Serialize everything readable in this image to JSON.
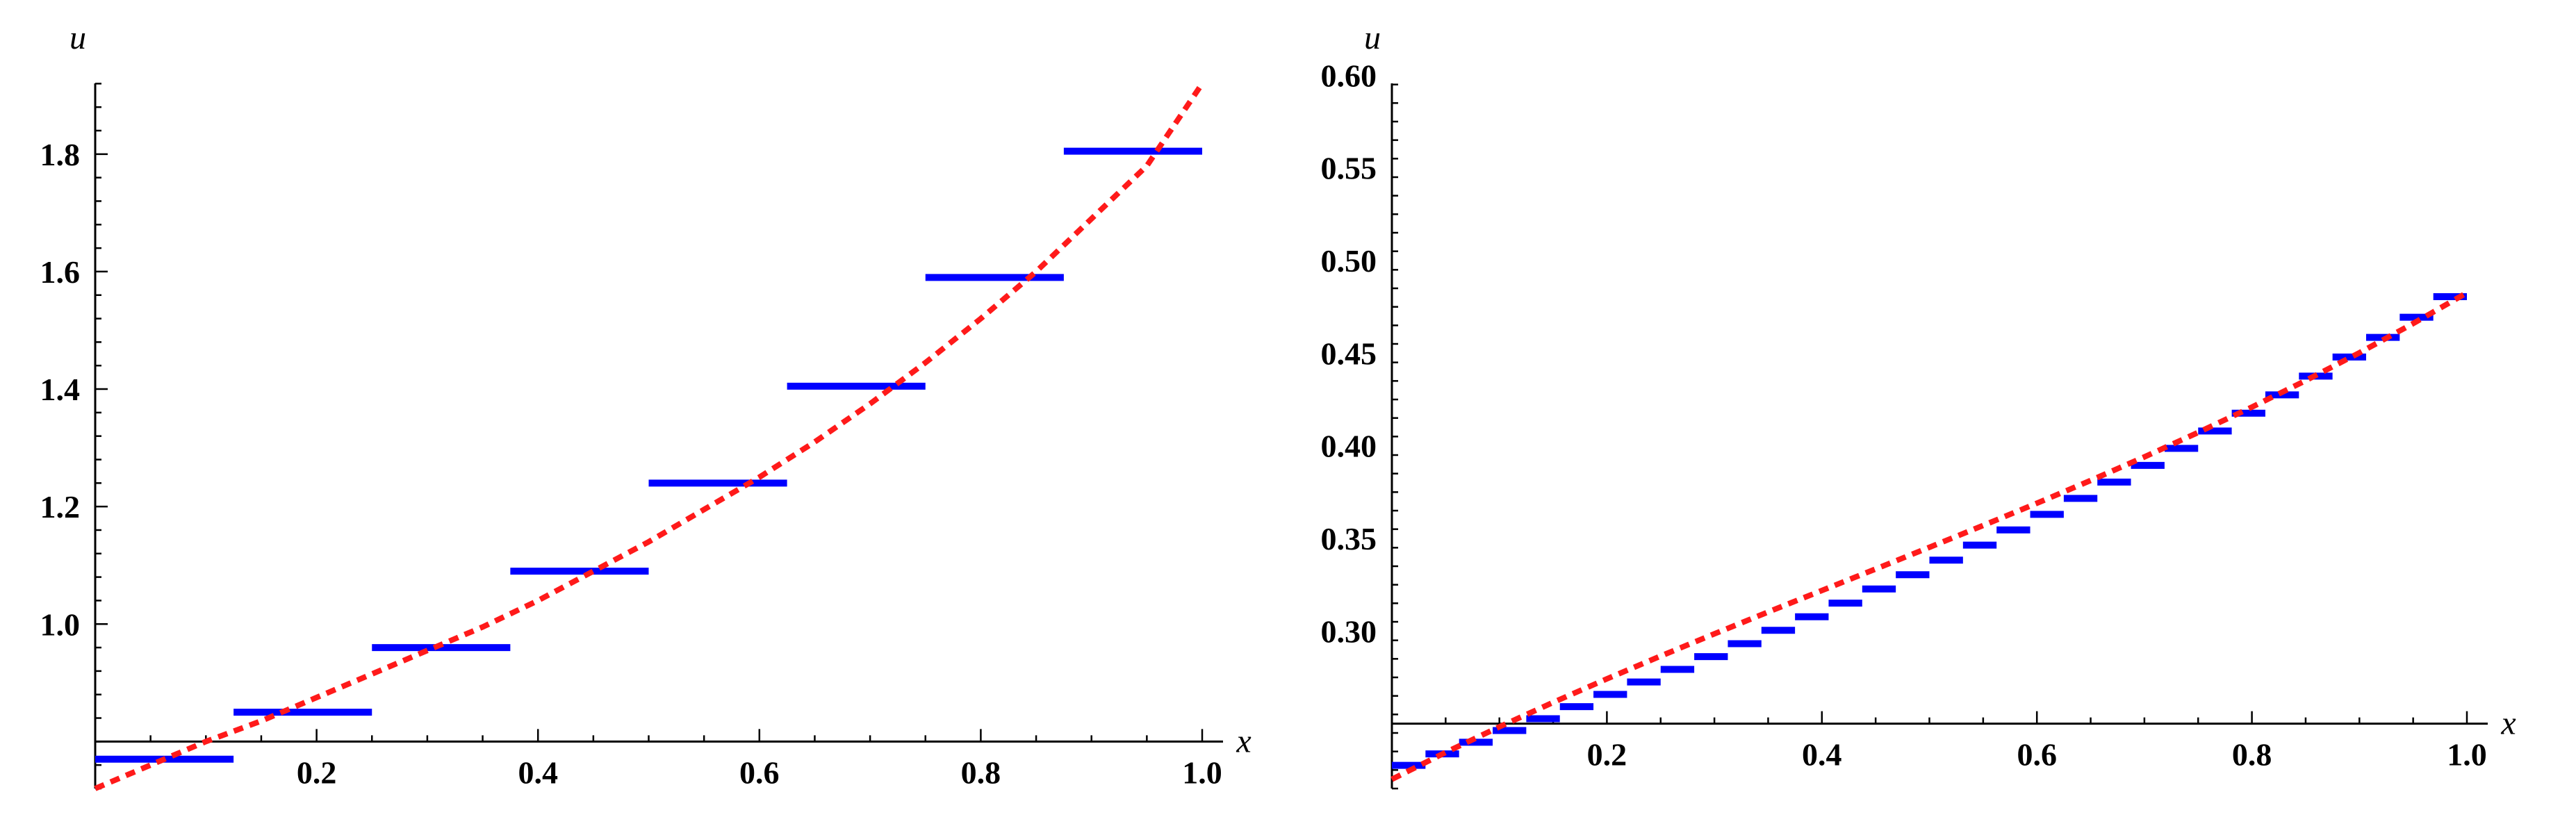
{
  "colors": {
    "approx": "#0000ff",
    "exact": "#ff1a1a",
    "axis": "#000000"
  },
  "chart_data": [
    {
      "type": "line",
      "xlabel": "x",
      "ylabel": "u",
      "xlim": [
        0,
        1.0
      ],
      "ylim": [
        0.72,
        1.95
      ],
      "y_origin": 0.8,
      "xticks": [
        0.2,
        0.4,
        0.6,
        0.8,
        1.0
      ],
      "xtick_labels": [
        "0.2",
        "0.4",
        "0.6",
        "0.8",
        "1.0"
      ],
      "yticks": [
        1.0,
        1.2,
        1.4,
        1.6,
        1.8
      ],
      "ytick_labels": [
        "1.0",
        "1.2",
        "1.4",
        "1.6",
        "1.8"
      ],
      "series": [
        {
          "style": "step",
          "color": "#0000ff",
          "segments": [
            [
              0.0,
              0.125,
              0.77
            ],
            [
              0.125,
              0.25,
              0.85
            ],
            [
              0.25,
              0.375,
              0.96
            ],
            [
              0.375,
              0.5,
              1.09
            ],
            [
              0.5,
              0.625,
              1.24
            ],
            [
              0.625,
              0.75,
              1.405
            ],
            [
              0.75,
              0.875,
              1.59
            ],
            [
              0.875,
              1.0,
              1.805
            ]
          ]
        },
        {
          "style": "dashed",
          "color": "#ff1a1a",
          "x": [
            0.0,
            0.05,
            0.1,
            0.15,
            0.2,
            0.25,
            0.3,
            0.35,
            0.4,
            0.45,
            0.5,
            0.55,
            0.6,
            0.65,
            0.7,
            0.75,
            0.8,
            0.85,
            0.9,
            0.95,
            1.0
          ],
          "y": [
            0.72,
            0.76,
            0.8,
            0.835,
            0.875,
            0.915,
            0.955,
            0.995,
            1.04,
            1.09,
            1.14,
            1.195,
            1.25,
            1.31,
            1.375,
            1.445,
            1.52,
            1.6,
            1.69,
            1.78,
            1.92
          ]
        }
      ]
    },
    {
      "type": "line",
      "xlabel": "x",
      "ylabel": "u",
      "xlim": [
        0,
        1.0
      ],
      "ylim": [
        0.215,
        0.605
      ],
      "y_origin": 0.25,
      "xticks": [
        0.2,
        0.4,
        0.6,
        0.8,
        1.0
      ],
      "xtick_labels": [
        "0.2",
        "0.4",
        "0.6",
        "0.8",
        "1.0"
      ],
      "yticks": [
        0.3,
        0.35,
        0.4,
        0.45,
        0.5,
        0.55,
        0.6
      ],
      "ytick_labels": [
        "0.30",
        "0.35",
        "0.40",
        "0.45",
        "0.50",
        "0.55",
        "0.60"
      ],
      "series": [
        {
          "style": "step",
          "color": "#0000ff",
          "segments": [
            [
              0.0,
              0.03125,
              0.2275
            ],
            [
              0.03125,
              0.0625,
              0.2337
            ],
            [
              0.0625,
              0.09375,
              0.24
            ],
            [
              0.09375,
              0.125,
              0.2463
            ],
            [
              0.125,
              0.15625,
              0.2527
            ],
            [
              0.15625,
              0.1875,
              0.2592
            ],
            [
              0.1875,
              0.21875,
              0.2658
            ],
            [
              0.21875,
              0.25,
              0.2725
            ],
            [
              0.25,
              0.28125,
              0.2793
            ],
            [
              0.28125,
              0.3125,
              0.2862
            ],
            [
              0.3125,
              0.34375,
              0.2932
            ],
            [
              0.34375,
              0.375,
              0.3004
            ],
            [
              0.375,
              0.40625,
              0.3077
            ],
            [
              0.40625,
              0.4375,
              0.3151
            ],
            [
              0.4375,
              0.46875,
              0.3227
            ],
            [
              0.46875,
              0.5,
              0.3304
            ],
            [
              0.5,
              0.53125,
              0.3383
            ],
            [
              0.53125,
              0.5625,
              0.3464
            ],
            [
              0.5625,
              0.59375,
              0.3546
            ],
            [
              0.59375,
              0.625,
              0.363
            ],
            [
              0.625,
              0.65625,
              0.3716
            ],
            [
              0.65625,
              0.6875,
              0.3804
            ],
            [
              0.6875,
              0.71875,
              0.3894
            ],
            [
              0.71875,
              0.75,
              0.3986
            ],
            [
              0.75,
              0.78125,
              0.408
            ],
            [
              0.78125,
              0.8125,
              0.4176
            ],
            [
              0.8125,
              0.84375,
              0.4275
            ],
            [
              0.84375,
              0.875,
              0.4376
            ],
            [
              0.875,
              0.90625,
              0.4479
            ],
            [
              0.90625,
              0.9375,
              0.4585
            ],
            [
              0.9375,
              0.96875,
              0.4694
            ],
            [
              0.96875,
              1.0,
              0.4805
            ]
          ]
        },
        {
          "style": "dashed",
          "color": "#ff1a1a",
          "x": [
            0.0,
            0.05,
            0.1,
            0.15,
            0.2,
            0.25,
            0.3,
            0.35,
            0.4,
            0.45,
            0.5,
            0.55,
            0.6,
            0.65,
            0.7,
            0.75,
            0.8,
            0.85,
            0.9,
            0.95,
            1.0
          ],
          "y": [
            0.22,
            0.2345,
            0.2483,
            0.2615,
            0.2742,
            0.2865,
            0.2985,
            0.3103,
            0.3219,
            0.3335,
            0.3452,
            0.357,
            0.369,
            0.3813,
            0.394,
            0.4072,
            0.4209,
            0.4352,
            0.4502,
            0.466,
            0.4826
          ]
        }
      ]
    }
  ]
}
